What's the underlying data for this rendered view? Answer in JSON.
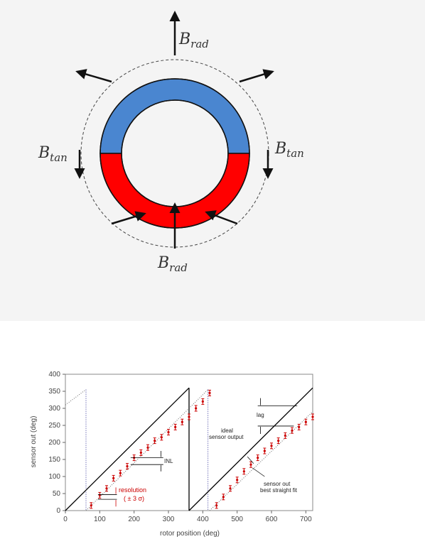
{
  "magnet_diagram": {
    "labels": {
      "b_rad_top": {
        "base": "B",
        "sub": "rad"
      },
      "b_rad_bottom": {
        "base": "B",
        "sub": "rad"
      },
      "b_tan_left": {
        "base": "B",
        "sub": "tan"
      },
      "b_tan_right": {
        "base": "B",
        "sub": "tan"
      }
    },
    "colors": {
      "north": "#4a86d0",
      "south": "#ff0000",
      "background": "#f4f4f4",
      "arrow": "#111111"
    }
  },
  "chart_data": {
    "type": "line",
    "xlabel": "rotor position (deg)",
    "ylabel": "sensor out (deg)",
    "xlim": [
      0,
      720
    ],
    "ylim": [
      0,
      400
    ],
    "x_ticks": [
      0,
      100,
      200,
      300,
      400,
      500,
      600,
      700
    ],
    "y_ticks": [
      0,
      50,
      100,
      150,
      200,
      250,
      300,
      350,
      400
    ],
    "ideal_lines": [
      {
        "x": [
          0,
          360
        ],
        "y": [
          0,
          360
        ]
      },
      {
        "x": [
          360,
          720
        ],
        "y": [
          0,
          360
        ]
      }
    ],
    "measured_points": [
      [
        75,
        15
      ],
      [
        100,
        45
      ],
      [
        120,
        65
      ],
      [
        140,
        95
      ],
      [
        160,
        110
      ],
      [
        180,
        130
      ],
      [
        200,
        155
      ],
      [
        220,
        170
      ],
      [
        240,
        185
      ],
      [
        260,
        205
      ],
      [
        280,
        215
      ],
      [
        300,
        230
      ],
      [
        320,
        245
      ],
      [
        340,
        260
      ],
      [
        360,
        275
      ],
      [
        380,
        300
      ],
      [
        400,
        320
      ],
      [
        420,
        345
      ],
      [
        440,
        15
      ],
      [
        460,
        40
      ],
      [
        480,
        65
      ],
      [
        500,
        90
      ],
      [
        520,
        115
      ],
      [
        540,
        135
      ],
      [
        560,
        155
      ],
      [
        580,
        175
      ],
      [
        600,
        190
      ],
      [
        620,
        205
      ],
      [
        640,
        220
      ],
      [
        660,
        235
      ],
      [
        680,
        245
      ],
      [
        700,
        260
      ],
      [
        720,
        275
      ]
    ],
    "fit_lines": [
      {
        "x": [
          0,
          60
        ],
        "y": [
          310,
          355
        ]
      },
      {
        "x": [
          60,
          415
        ],
        "y": [
          0,
          355
        ]
      },
      {
        "x": [
          420,
          720
        ],
        "y": [
          0,
          290
        ]
      }
    ],
    "wrap_lines": [
      60,
      415
    ],
    "annotations": {
      "inl": "INL",
      "resolution": "resolution",
      "resolution_sigma": "( ± 3 σ)",
      "lag": "lag",
      "ideal_line1": "ideal",
      "ideal_line2": "sensor output",
      "fit_line1": "sensor out",
      "fit_line2": "best straight fit"
    },
    "colors": {
      "ideal": "#000000",
      "measured": "#cc0000",
      "fit": "#666666",
      "wrap": "#333399",
      "annotation_red": "#cc0000"
    }
  }
}
